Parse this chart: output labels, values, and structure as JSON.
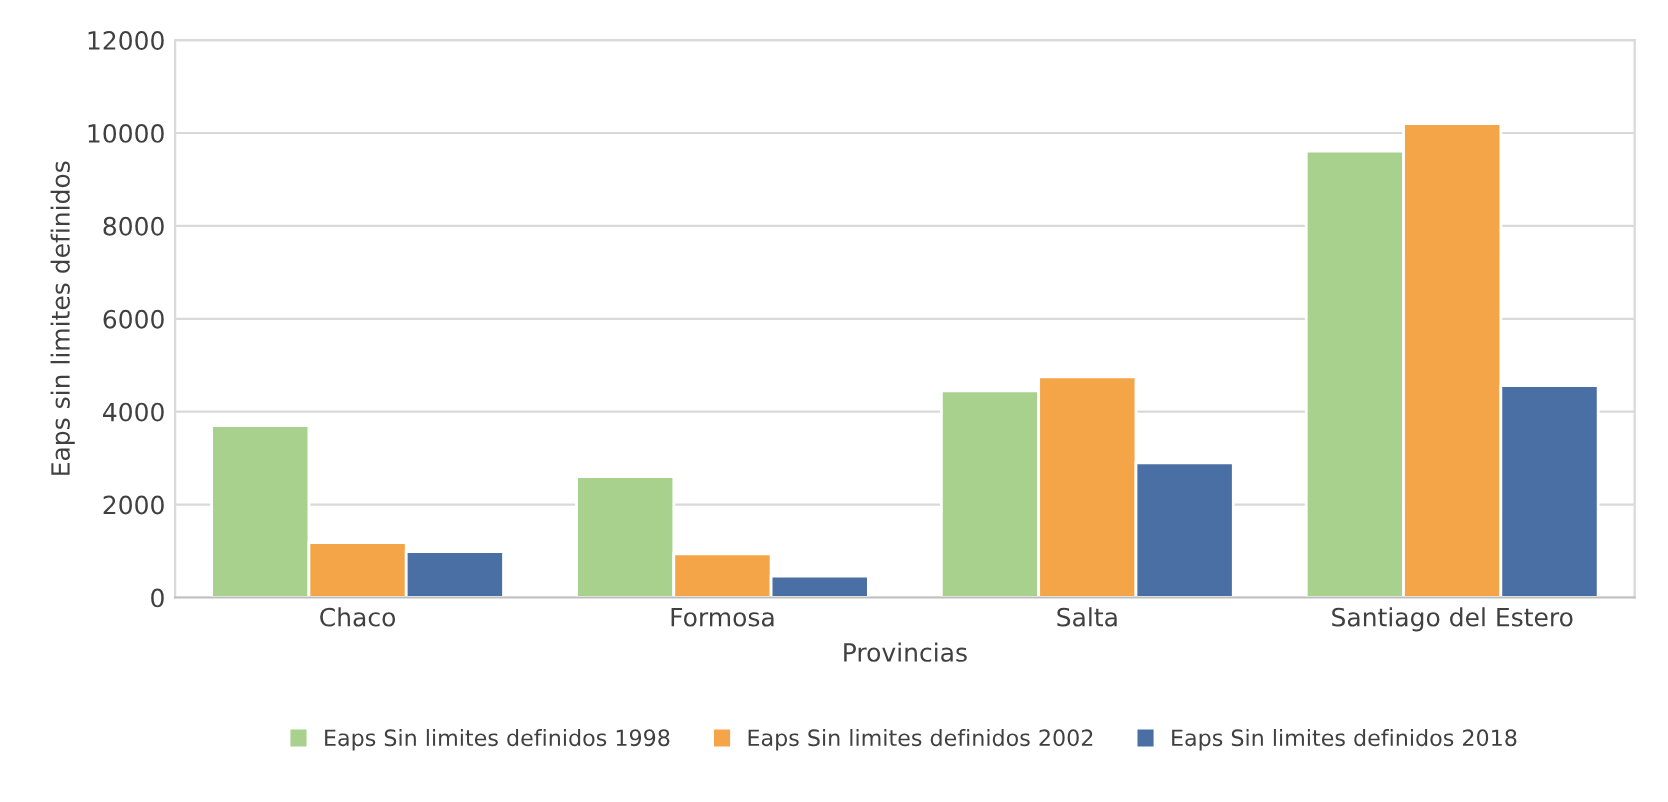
{
  "chart_data": {
    "type": "bar",
    "xlabel": "Provincias",
    "ylabel": "Eaps sin limites definidos",
    "categories": [
      "Chaco",
      "Formosa",
      "Salta",
      "Santiago del Estero"
    ],
    "series": [
      {
        "name": "Eaps Sin limites definidos 1998",
        "color": "#a9d18e",
        "values": [
          3700,
          2600,
          4450,
          9610
        ]
      },
      {
        "name": "Eaps Sin limites definidos 2002",
        "color": "#f4a548",
        "values": [
          1180,
          940,
          4750,
          10200
        ]
      },
      {
        "name": "Eaps Sin limites definidos 2018",
        "color": "#4a6fa5",
        "values": [
          990,
          460,
          2900,
          4560
        ]
      }
    ],
    "ylim": [
      0,
      12000
    ],
    "yticks": [
      0,
      2000,
      4000,
      6000,
      8000,
      10000,
      12000
    ],
    "grid": "y",
    "legend": "bottom"
  }
}
